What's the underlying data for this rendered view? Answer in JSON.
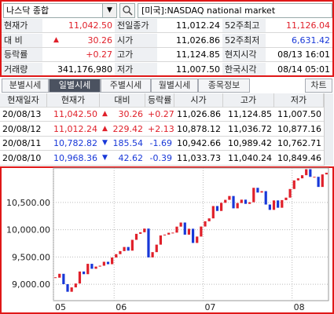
{
  "header": {
    "market": "나스닥 종합",
    "exchange": "[미국]:NASDAQ national market"
  },
  "quote": {
    "change_arrow": "▲",
    "rows": [
      [
        "현재가",
        "11,042.50",
        "전일종가",
        "11,012.24",
        "52주최고",
        "11,126.04"
      ],
      [
        "대 비",
        "30.26",
        "시가",
        "11,026.86",
        "52주최저",
        "6,631.42"
      ],
      [
        "등락률",
        "+0.27",
        "고가",
        "11,124.85",
        "현지시각",
        "08/13 16:01"
      ],
      [
        "거래량",
        "341,176,980",
        "저가",
        "11,007.50",
        "한국시각",
        "08/14 05:01"
      ]
    ]
  },
  "tabs": [
    "분별시세",
    "일별시세",
    "주별시세",
    "월별시세",
    "종목정보"
  ],
  "chart_button": "차트",
  "table": {
    "columns": [
      "현재일자",
      "현재가",
      "대비",
      "등락률",
      "시가",
      "고가",
      "저가"
    ],
    "arrows": [
      "▲",
      "▲",
      "▼",
      "▼"
    ],
    "rows": [
      [
        "20/08/13",
        "11,042.50",
        "30.26",
        "+0.27",
        "11,026.86",
        "11,124.85",
        "11,007.50"
      ],
      [
        "20/08/12",
        "11,012.24",
        "229.42",
        "+2.13",
        "10,878.12",
        "11,036.72",
        "10,877.16"
      ],
      [
        "20/08/11",
        "10,782.82",
        "185.54",
        "-1.69",
        "10,942.66",
        "10,989.42",
        "10,762.71"
      ],
      [
        "20/08/10",
        "10,968.36",
        "42.62",
        "-0.39",
        "11,033.73",
        "11,040.24",
        "10,849.46"
      ]
    ]
  },
  "chart_data": {
    "type": "candlestick",
    "up_color": "#e0202a",
    "down_color": "#1838d8",
    "close": [
      9121,
      9192,
      9002,
      8863,
      8943,
      9014,
      9234,
      9185,
      9375,
      9284,
      9324,
      9340,
      9412,
      9368,
      9490,
      9552,
      9608,
      9683,
      9616,
      9814,
      9924,
      9953,
      10020,
      9492,
      9589,
      9726,
      9895,
      9910,
      9943,
      9946,
      10056,
      10131,
      9909,
      10017,
      9757,
      9874,
      10058,
      10154,
      10207,
      10433,
      10343,
      10492,
      10547,
      10617,
      10391,
      10488,
      10550,
      10473,
      10503,
      10767,
      10680,
      10706,
      10461,
      10363,
      10536,
      10402,
      10542,
      10587,
      10745,
      10903,
      10941,
      10998,
      11108,
      10968,
      10968.36,
      10782.82,
      11012.24,
      11042.5
    ],
    "ylim": [
      8700,
      11130
    ],
    "yticks": [
      {
        "value": 9000,
        "label": "9,000.00"
      },
      {
        "value": 9500,
        "label": "9,500.00"
      },
      {
        "value": 10000,
        "label": "10,000.00"
      },
      {
        "value": 10500,
        "label": "10,500.00"
      }
    ],
    "xlim": [
      0,
      68
    ],
    "xticks": [
      {
        "value": 0,
        "label": "05"
      },
      {
        "value": 15,
        "label": "06"
      },
      {
        "value": 37,
        "label": "07"
      },
      {
        "value": 59,
        "label": "08"
      }
    ],
    "grid": true
  }
}
